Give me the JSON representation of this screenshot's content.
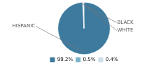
{
  "chart_data": {
    "type": "pie",
    "categories": [
      "HISPANIC",
      "BLACK",
      "WHITE"
    ],
    "values": [
      99.2,
      0.5,
      0.4
    ],
    "value_labels": [
      "99.2%",
      "0.5%",
      "0.4%"
    ],
    "colors": [
      "#3d7a9e",
      "#7ab3c8",
      "#cddee8"
    ],
    "legend": "bottom"
  }
}
